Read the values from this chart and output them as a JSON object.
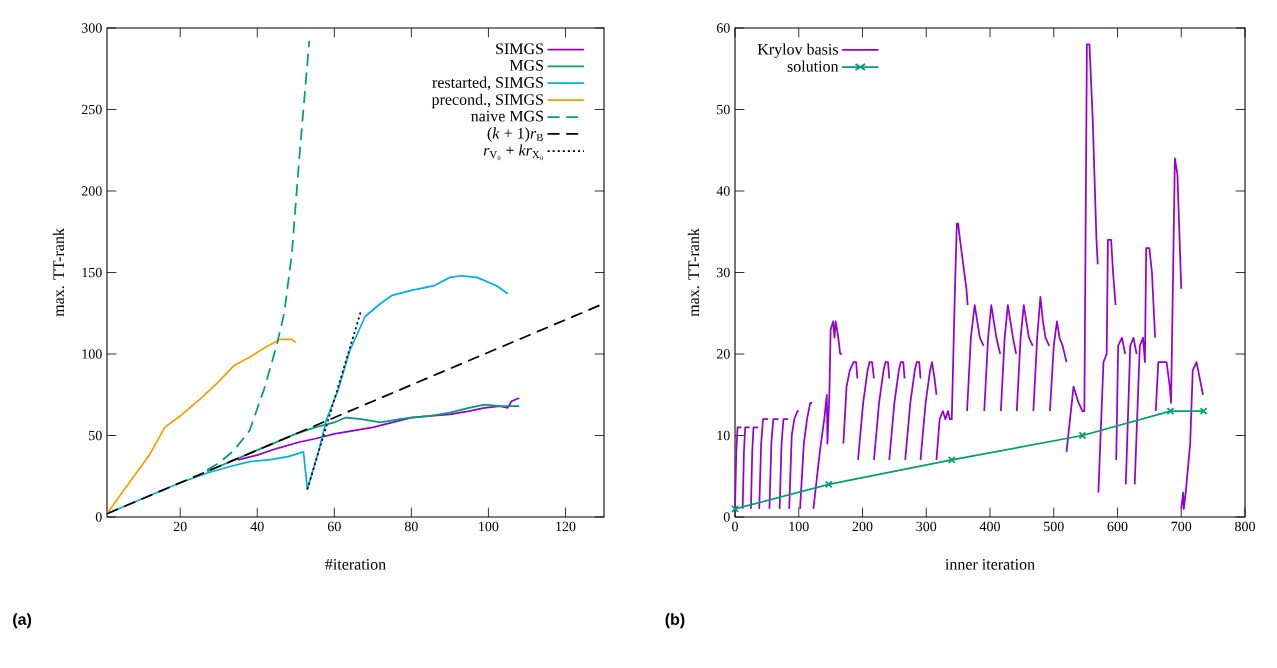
{
  "chart_data": [
    {
      "type": "line",
      "xlabel": "#iteration",
      "ylabel": "max. TT-rank",
      "xlim": [
        1,
        130
      ],
      "ylim": [
        0,
        300
      ],
      "xticks": [
        20,
        40,
        60,
        80,
        100,
        120
      ],
      "yticks": [
        0,
        50,
        100,
        150,
        200,
        250,
        300
      ],
      "legend": "top right",
      "annotations": [
        "**(a)**"
      ],
      "series": [
        {
          "name": "SIMGS",
          "color": "#9400d3",
          "line_style": "solid",
          "x": [
            35,
            40,
            45,
            51,
            55,
            60,
            65,
            70,
            75,
            80,
            85,
            90,
            95,
            99,
            103,
            105,
            106,
            108
          ],
          "values": [
            35,
            38,
            42,
            46,
            48,
            51,
            53,
            55,
            58,
            61,
            62,
            63,
            65,
            67,
            68,
            67,
            71,
            73
          ]
        },
        {
          "name": "MGS",
          "color": "#009e73",
          "line_style": "solid",
          "x": [
            27,
            30,
            40,
            50,
            55,
            60,
            63,
            67,
            72,
            77,
            80,
            85,
            90,
            95,
            99,
            103,
            108
          ],
          "values": [
            28,
            31,
            41,
            51,
            55,
            58,
            61,
            60,
            58,
            60,
            61,
            62,
            64,
            67,
            69,
            68,
            68
          ]
        },
        {
          "name": "restarted, SIMGS",
          "color": "#00b0ec",
          "line_style": "solid",
          "x": [
            1,
            10,
            20,
            27,
            33,
            38,
            43,
            48,
            52,
            53,
            56,
            58,
            61,
            64,
            68,
            72,
            75,
            80,
            86,
            90,
            93,
            97,
            102,
            105
          ],
          "values": [
            2,
            11,
            21,
            27,
            31,
            34,
            35,
            37,
            40,
            17,
            41,
            60,
            78,
            102,
            123,
            131,
            136,
            139,
            142,
            147,
            148,
            147,
            142,
            137
          ]
        },
        {
          "name": "precond., SIMGS",
          "color": "#f5a000",
          "line_style": "solid",
          "x": [
            1,
            4,
            8,
            12,
            16,
            20,
            25,
            30,
            34,
            38,
            42,
            46,
            49,
            50
          ],
          "values": [
            2,
            12,
            25,
            38,
            55,
            62,
            72,
            83,
            93,
            98,
            104,
            109,
            109,
            107
          ]
        },
        {
          "name": "naive MGS",
          "color": "#009e73",
          "line_style": "dashed",
          "x": [
            27,
            30,
            34,
            38,
            42,
            45,
            47,
            49,
            51,
            53.5
          ],
          "values": [
            29,
            33,
            41,
            53,
            80,
            105,
            125,
            162,
            223,
            292
          ]
        },
        {
          "name": "(*k* + 1)*r*$_{B}$",
          "color": "#000000",
          "line_style": "dashed",
          "x": [
            1,
            130
          ],
          "values": [
            2,
            131
          ]
        },
        {
          "name": "*r*$_{V₀}$ + *kr*$_{X₀}$",
          "color": "#000000",
          "line_style": "dotted",
          "x": [
            53,
            60,
            67
          ],
          "values": [
            17,
            72,
            127
          ]
        }
      ]
    },
    {
      "type": "line",
      "xlabel": "inner iteration",
      "ylabel": "max. TT-rank",
      "xlim": [
        0,
        800
      ],
      "ylim": [
        0,
        60
      ],
      "xticks": [
        0,
        100,
        200,
        300,
        400,
        500,
        600,
        700,
        800
      ],
      "yticks": [
        0,
        10,
        20,
        30,
        40,
        50,
        60
      ],
      "legend": "top left",
      "annotations": [
        "**(b)**"
      ],
      "series": [
        {
          "name": "Krylov basis",
          "color": "#9400d3",
          "line_style": "solid",
          "x": [
            0,
            2,
            4,
            10
          ],
          "values": [
            1,
            8,
            11,
            11
          ]
        },
        {
          "color": "#9400d3",
          "line_style": "solid",
          "x": [
            12,
            14,
            16,
            23
          ],
          "values": [
            1,
            8,
            11,
            11
          ]
        },
        {
          "color": "#9400d3",
          "line_style": "solid",
          "x": [
            25,
            27,
            29,
            36
          ],
          "values": [
            1,
            8,
            11,
            11
          ]
        },
        {
          "color": "#9400d3",
          "line_style": "solid",
          "x": [
            38,
            41,
            44,
            52
          ],
          "values": [
            1,
            9,
            12,
            12
          ]
        },
        {
          "color": "#9400d3",
          "line_style": "solid",
          "x": [
            54,
            57,
            60,
            68
          ],
          "values": [
            1,
            9,
            12,
            12
          ]
        },
        {
          "color": "#9400d3",
          "line_style": "solid",
          "x": [
            70,
            73,
            76,
            83
          ],
          "values": [
            1,
            9,
            12,
            12
          ]
        },
        {
          "color": "#9400d3",
          "line_style": "solid",
          "x": [
            85,
            89,
            93,
            98,
            100
          ],
          "values": [
            1,
            10,
            12,
            13,
            13
          ]
        },
        {
          "color": "#9400d3",
          "line_style": "solid",
          "x": [
            102,
            108,
            113,
            118,
            121
          ],
          "values": [
            1,
            9,
            12,
            14,
            14
          ]
        },
        {
          "color": "#9400d3",
          "line_style": "solid",
          "x": [
            123,
            133,
            140,
            144,
            145,
            148,
            150,
            154,
            156,
            158,
            162,
            165,
            168
          ],
          "values": [
            1,
            8,
            12,
            15,
            9,
            15,
            23,
            24,
            22,
            24,
            22,
            20,
            20
          ]
        },
        {
          "color": "#9400d3",
          "line_style": "solid",
          "x": [
            170,
            175,
            180,
            186,
            190,
            192
          ],
          "values": [
            9,
            16,
            18,
            19,
            19,
            17
          ]
        },
        {
          "color": "#9400d3",
          "line_style": "solid",
          "x": [
            193,
            201,
            208,
            211,
            215,
            218
          ],
          "values": [
            7,
            14,
            18,
            19,
            19,
            17
          ]
        },
        {
          "color": "#9400d3",
          "line_style": "solid",
          "x": [
            218,
            226,
            233,
            236,
            240,
            242
          ],
          "values": [
            7,
            14,
            18,
            19,
            19,
            17
          ]
        },
        {
          "color": "#9400d3",
          "line_style": "solid",
          "x": [
            242,
            250,
            257,
            260,
            264,
            266
          ],
          "values": [
            7,
            14,
            18,
            19,
            19,
            17
          ]
        },
        {
          "color": "#9400d3",
          "line_style": "solid",
          "x": [
            267,
            275,
            282,
            285,
            289,
            291
          ],
          "values": [
            7,
            14,
            18,
            19,
            19,
            17
          ]
        },
        {
          "color": "#9400d3",
          "line_style": "solid",
          "x": [
            291,
            299,
            306,
            309,
            313,
            316
          ],
          "values": [
            7,
            14,
            18,
            19,
            17,
            15
          ]
        },
        {
          "color": "#9400d3",
          "line_style": "solid",
          "x": [
            316,
            321,
            326,
            330,
            334,
            337,
            340,
            345,
            348,
            350,
            353,
            358,
            363,
            365
          ],
          "values": [
            7,
            12,
            13,
            12,
            13,
            12,
            12,
            28,
            36,
            36,
            34,
            31,
            28,
            26
          ]
        },
        {
          "color": "#9400d3",
          "line_style": "solid",
          "x": [
            364,
            370,
            376,
            380,
            384,
            390
          ],
          "values": [
            13,
            22,
            26,
            24,
            22,
            21
          ]
        },
        {
          "color": "#9400d3",
          "line_style": "solid",
          "x": [
            391,
            397,
            402,
            406,
            410,
            416
          ],
          "values": [
            13,
            22,
            26,
            24,
            22,
            20
          ]
        },
        {
          "color": "#9400d3",
          "line_style": "solid",
          "x": [
            417,
            423,
            428,
            432,
            436,
            441
          ],
          "values": [
            13,
            22,
            26,
            24,
            22,
            20
          ]
        },
        {
          "color": "#9400d3",
          "line_style": "solid",
          "x": [
            442,
            448,
            453,
            457,
            461,
            467
          ],
          "values": [
            13,
            22,
            26,
            24,
            22,
            21
          ]
        },
        {
          "color": "#9400d3",
          "line_style": "solid",
          "x": [
            468,
            474,
            479,
            483,
            487,
            493
          ],
          "values": [
            13,
            22,
            27,
            24,
            22,
            21
          ]
        },
        {
          "color": "#9400d3",
          "line_style": "solid",
          "x": [
            494,
            500,
            505,
            509,
            514,
            520
          ],
          "values": [
            13,
            21,
            24,
            22,
            21,
            19
          ]
        },
        {
          "color": "#9400d3",
          "line_style": "solid",
          "x": [
            520,
            531,
            539,
            545,
            548,
            552,
            556,
            561,
            567,
            569
          ],
          "values": [
            8,
            16,
            14,
            13,
            13,
            58,
            58,
            49,
            34,
            31
          ]
        },
        {
          "color": "#9400d3",
          "line_style": "solid",
          "x": [
            570,
            578,
            583,
            585,
            590,
            593,
            597
          ],
          "values": [
            3,
            19,
            20,
            34,
            34,
            30,
            26
          ]
        },
        {
          "color": "#9400d3",
          "line_style": "solid",
          "x": [
            598,
            601,
            607,
            612
          ],
          "values": [
            7,
            21,
            22,
            20
          ]
        },
        {
          "color": "#9400d3",
          "line_style": "solid",
          "x": [
            613,
            620,
            625,
            630
          ],
          "values": [
            4,
            21,
            22,
            20
          ]
        },
        {
          "color": "#9400d3",
          "line_style": "solid",
          "x": [
            627,
            635,
            640,
            643,
            645,
            650,
            654,
            659
          ],
          "values": [
            4,
            21,
            22,
            19,
            33,
            33,
            30,
            22
          ]
        },
        {
          "color": "#9400d3",
          "line_style": "solid",
          "x": [
            660,
            664,
            677,
            682,
            684,
            690,
            694,
            700
          ],
          "values": [
            13,
            19,
            19,
            16,
            14,
            44,
            42,
            28
          ]
        },
        {
          "color": "#9400d3",
          "line_style": "solid",
          "x": [
            700,
            703,
            704,
            707,
            714,
            718,
            724,
            729,
            734
          ],
          "values": [
            1,
            3,
            1,
            3,
            9,
            18,
            19,
            17,
            15
          ]
        },
        {
          "name": "solution",
          "color": "#009e73",
          "line_style": "solid",
          "marker": "cross",
          "x": [
            0,
            147,
            340,
            545,
            683,
            735
          ],
          "values": [
            1,
            4,
            7,
            10,
            13,
            13
          ]
        }
      ]
    }
  ]
}
